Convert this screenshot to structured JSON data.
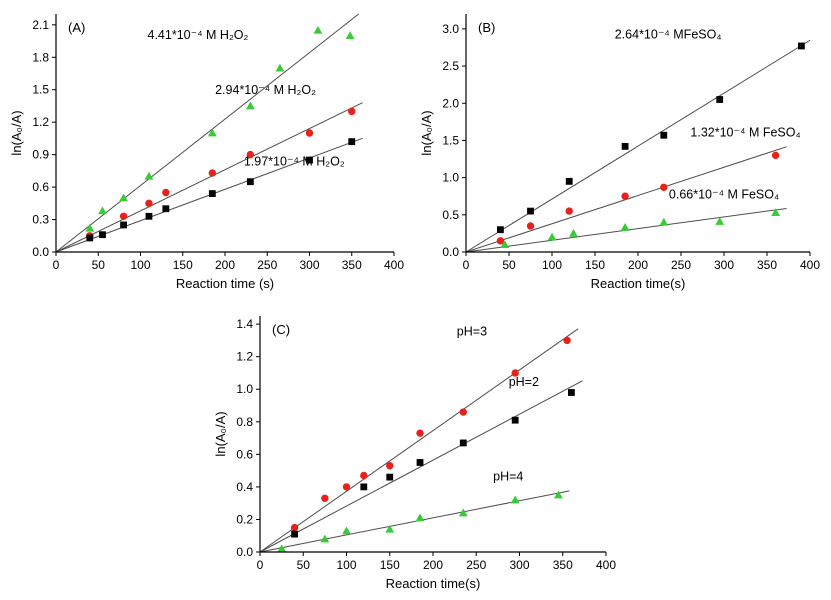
{
  "figure": {
    "background": "#ffffff",
    "axis_color": "#000000",
    "fit_line_color": "#4d4d4d"
  },
  "chart_data": [
    {
      "id": "A",
      "type": "scatter",
      "panel_label": "(A)",
      "xlabel": "Reaction time (s)",
      "ylabel": "ln(A₀/A)",
      "xlim": [
        0,
        400
      ],
      "ylim": [
        0,
        2.2
      ],
      "xticks": [
        0,
        50,
        100,
        150,
        200,
        250,
        300,
        350,
        400
      ],
      "yticks": [
        0.0,
        0.3,
        0.6,
        0.9,
        1.2,
        1.5,
        1.8,
        2.1
      ],
      "xtick_decimals": 0,
      "ytick_decimals": 1,
      "grid": false,
      "legend_position": "inline-annotations",
      "series": [
        {
          "name": "4.41*10⁻⁴ M H₂O₂",
          "marker": "triangle",
          "color": "#35cc35",
          "fit_line": true,
          "points": [
            [
              40,
              0.22
            ],
            [
              55,
              0.38
            ],
            [
              80,
              0.5
            ],
            [
              110,
              0.7
            ],
            [
              185,
              1.1
            ],
            [
              230,
              1.35
            ],
            [
              265,
              1.7
            ],
            [
              310,
              2.05
            ],
            [
              348,
              2.0
            ]
          ],
          "label": {
            "text": "4.41*10⁻⁴ M H₂O₂",
            "x": 168,
            "y": 1.97
          }
        },
        {
          "name": "2.94*10⁻⁴ M H₂O₂",
          "marker": "circle",
          "color": "#e8221a",
          "fit_line": true,
          "points": [
            [
              40,
              0.15
            ],
            [
              80,
              0.33
            ],
            [
              110,
              0.45
            ],
            [
              130,
              0.55
            ],
            [
              185,
              0.73
            ],
            [
              230,
              0.9
            ],
            [
              300,
              1.1
            ],
            [
              350,
              1.3
            ]
          ],
          "label": {
            "text": "2.94*10⁻⁴ M H₂O₂",
            "x": 248,
            "y": 1.46
          }
        },
        {
          "name": "1.97*10⁻⁴ M H₂O₂",
          "marker": "square",
          "color": "#000000",
          "fit_line": true,
          "points": [
            [
              40,
              0.13
            ],
            [
              55,
              0.16
            ],
            [
              80,
              0.25
            ],
            [
              110,
              0.33
            ],
            [
              130,
              0.4
            ],
            [
              185,
              0.54
            ],
            [
              230,
              0.65
            ],
            [
              300,
              0.85
            ],
            [
              350,
              1.02
            ]
          ],
          "label": {
            "text": "1.97*10⁻⁴ M H₂O₂",
            "x": 282,
            "y": 0.8
          }
        }
      ]
    },
    {
      "id": "B",
      "type": "scatter",
      "panel_label": "(B)",
      "xlabel": "Reaction time(s)",
      "ylabel": "ln(A₀/A)",
      "xlim": [
        0,
        400
      ],
      "ylim": [
        0,
        3.2
      ],
      "xticks": [
        0,
        50,
        100,
        150,
        200,
        250,
        300,
        350,
        400
      ],
      "yticks": [
        0.0,
        0.5,
        1.0,
        1.5,
        2.0,
        2.5,
        3.0
      ],
      "xtick_decimals": 0,
      "ytick_decimals": 1,
      "grid": false,
      "legend_position": "inline-annotations",
      "series": [
        {
          "name": "2.64*10⁻⁴ MFeSO₄",
          "marker": "square",
          "color": "#000000",
          "fit_line": true,
          "points": [
            [
              40,
              0.3
            ],
            [
              75,
              0.55
            ],
            [
              120,
              0.95
            ],
            [
              185,
              1.42
            ],
            [
              230,
              1.57
            ],
            [
              295,
              2.05
            ],
            [
              390,
              2.77
            ]
          ],
          "label": {
            "text": "2.64*10⁻⁴ MFeSO₄",
            "x": 235,
            "y": 2.87
          }
        },
        {
          "name": "1.32*10⁻⁴ M FeSO₄",
          "marker": "circle",
          "color": "#e8221a",
          "fit_line": true,
          "points": [
            [
              40,
              0.15
            ],
            [
              75,
              0.35
            ],
            [
              120,
              0.55
            ],
            [
              185,
              0.75
            ],
            [
              230,
              0.87
            ],
            [
              360,
              1.3
            ]
          ],
          "label": {
            "text": "1.32*10⁻⁴ M FeSO₄",
            "x": 325,
            "y": 1.55
          }
        },
        {
          "name": "0.66*10⁻⁴ M FeSO₄",
          "marker": "triangle",
          "color": "#35cc35",
          "fit_line": true,
          "points": [
            [
              45,
              0.1
            ],
            [
              100,
              0.2
            ],
            [
              125,
              0.25
            ],
            [
              185,
              0.33
            ],
            [
              230,
              0.4
            ],
            [
              295,
              0.41
            ],
            [
              360,
              0.53
            ]
          ],
          "label": {
            "text": "0.66*10⁻⁴ M FeSO₄",
            "x": 300,
            "y": 0.72
          }
        }
      ]
    },
    {
      "id": "C",
      "type": "scatter",
      "panel_label": "(C)",
      "xlabel": "Reaction time(s)",
      "ylabel": "ln(A₀/A)",
      "xlim": [
        0,
        400
      ],
      "ylim": [
        0,
        1.45
      ],
      "xticks": [
        0,
        50,
        100,
        150,
        200,
        250,
        300,
        350,
        400
      ],
      "yticks": [
        0.0,
        0.2,
        0.4,
        0.6,
        0.8,
        1.0,
        1.2,
        1.4
      ],
      "xtick_decimals": 0,
      "ytick_decimals": 1,
      "grid": false,
      "legend_position": "inline-annotations",
      "series": [
        {
          "name": "pH=3",
          "marker": "circle",
          "color": "#e8221a",
          "fit_line": true,
          "points": [
            [
              40,
              0.15
            ],
            [
              75,
              0.33
            ],
            [
              100,
              0.4
            ],
            [
              120,
              0.47
            ],
            [
              150,
              0.53
            ],
            [
              185,
              0.73
            ],
            [
              235,
              0.86
            ],
            [
              295,
              1.1
            ],
            [
              355,
              1.3
            ]
          ],
          "label": {
            "text": "pH=3",
            "x": 245,
            "y": 1.33
          }
        },
        {
          "name": "pH=2",
          "marker": "square",
          "color": "#000000",
          "fit_line": true,
          "points": [
            [
              40,
              0.11
            ],
            [
              120,
              0.4
            ],
            [
              150,
              0.46
            ],
            [
              185,
              0.55
            ],
            [
              235,
              0.67
            ],
            [
              295,
              0.81
            ],
            [
              360,
              0.98
            ]
          ],
          "label": {
            "text": "pH=2",
            "x": 305,
            "y": 1.02
          }
        },
        {
          "name": "pH=4",
          "marker": "triangle",
          "color": "#35cc35",
          "fit_line": true,
          "points": [
            [
              25,
              0.02
            ],
            [
              75,
              0.08
            ],
            [
              100,
              0.13
            ],
            [
              150,
              0.14
            ],
            [
              185,
              0.21
            ],
            [
              235,
              0.24
            ],
            [
              295,
              0.32
            ],
            [
              345,
              0.35
            ]
          ],
          "label": {
            "text": "pH=4",
            "x": 287,
            "y": 0.44
          }
        }
      ]
    }
  ]
}
